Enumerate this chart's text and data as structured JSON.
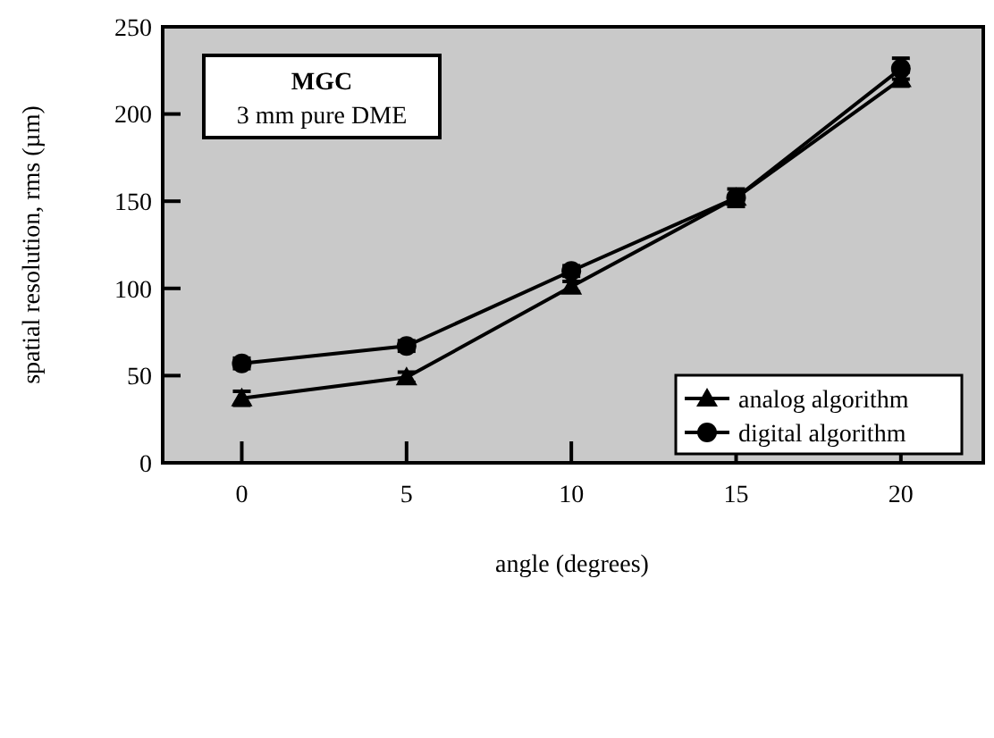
{
  "chart_data": {
    "type": "line",
    "xlabel": "angle (degrees)",
    "ylabel": "spatial resolution, rms (µm)",
    "annotations": [
      "MGC",
      "3 mm pure DME"
    ],
    "x": [
      0,
      5,
      10,
      15,
      20
    ],
    "series": [
      {
        "name": "analog algorithm",
        "color": "#000000",
        "marker": "triangle",
        "values": [
          37,
          49,
          101,
          152,
          220
        ],
        "errors": [
          4,
          3,
          3,
          null,
          4
        ]
      },
      {
        "name": "digital algorithm",
        "color": "#000000",
        "marker": "circle",
        "values": [
          57,
          67,
          110,
          152,
          226
        ],
        "errors": [
          3,
          3,
          3,
          5,
          6
        ]
      }
    ],
    "xlim": [
      -2.4,
      22.5
    ],
    "xticks": [
      0,
      5,
      10,
      15,
      20
    ],
    "ylim": [
      0,
      250
    ],
    "yticks": [
      0,
      50,
      100,
      150,
      200,
      250
    ],
    "grid": false,
    "legend": "bottom right"
  }
}
